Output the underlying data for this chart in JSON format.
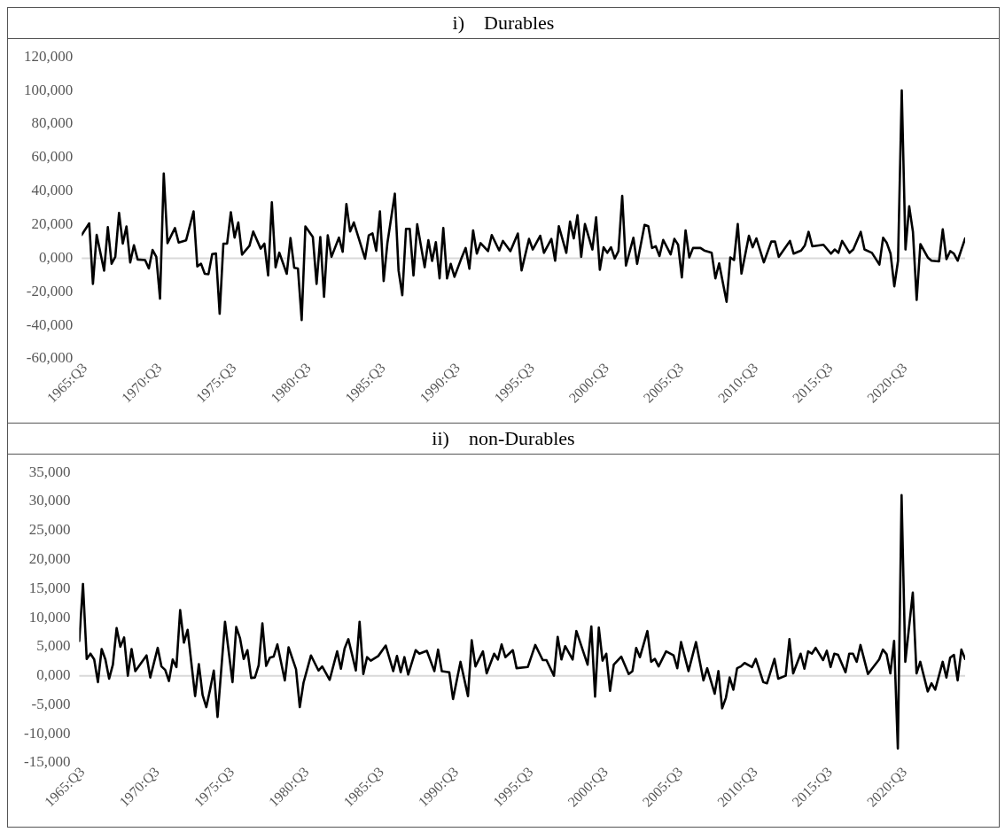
{
  "chart_data": [
    {
      "type": "line",
      "title": "i)    Durables",
      "color": "#000000",
      "marker": "none",
      "line_style": "solid",
      "grid": false,
      "ref_lines": [
        {
          "axis": "y",
          "value": 0,
          "color": "#d9d9d9"
        }
      ],
      "xlim": [
        "1965-07",
        "2024-10"
      ],
      "xticks": [
        {
          "value": "1965-07",
          "label": "1965:Q3"
        },
        {
          "value": "1970-07",
          "label": "1970:Q3"
        },
        {
          "value": "1975-07",
          "label": "1975:Q3"
        },
        {
          "value": "1980-07",
          "label": "1980:Q3"
        },
        {
          "value": "1985-07",
          "label": "1985:Q3"
        },
        {
          "value": "1990-07",
          "label": "1990:Q3"
        },
        {
          "value": "1995-07",
          "label": "1995:Q3"
        },
        {
          "value": "2000-07",
          "label": "2000:Q3"
        },
        {
          "value": "2005-07",
          "label": "2005:Q3"
        },
        {
          "value": "2010-07",
          "label": "2010:Q3"
        },
        {
          "value": "2015-07",
          "label": "2015:Q3"
        },
        {
          "value": "2020-07",
          "label": "2020:Q3"
        }
      ],
      "ylim": [
        -60,
        120
      ],
      "yticks": [
        {
          "value": -60,
          "label": "-60,000"
        },
        {
          "value": -40,
          "label": "-40,000"
        },
        {
          "value": -20,
          "label": "-20,000"
        },
        {
          "value": 0,
          "label": "0,000"
        },
        {
          "value": 20,
          "label": "20,000"
        },
        {
          "value": 40,
          "label": "40,000"
        },
        {
          "value": 60,
          "label": "60,000"
        },
        {
          "value": 80,
          "label": "80,000"
        },
        {
          "value": 100,
          "label": "100,000"
        },
        {
          "value": 120,
          "label": "120,000"
        }
      ],
      "x": [
        "1965-07",
        "1966-01",
        "1966-04",
        "1966-07",
        "1967-01",
        "1967-04",
        "1967-07",
        "1967-10",
        "1968-01",
        "1968-04",
        "1968-07",
        "1968-10",
        "1969-01",
        "1969-04",
        "1969-10",
        "1970-01",
        "1970-04",
        "1970-07",
        "1970-10",
        "1971-01",
        "1971-04",
        "1971-10",
        "1972-01",
        "1972-07",
        "1973-01",
        "1973-04",
        "1973-07",
        "1973-10",
        "1974-01",
        "1974-04",
        "1974-07",
        "1974-10",
        "1975-01",
        "1975-04",
        "1975-07",
        "1975-10",
        "1976-01",
        "1976-04",
        "1976-10",
        "1977-01",
        "1977-07",
        "1977-10",
        "1978-01",
        "1978-04",
        "1978-07",
        "1978-10",
        "1979-04",
        "1979-07",
        "1979-10",
        "1980-01",
        "1980-04",
        "1980-07",
        "1981-01",
        "1981-04",
        "1981-07",
        "1981-10",
        "1982-01",
        "1982-04",
        "1982-10",
        "1983-01",
        "1983-04",
        "1983-07",
        "1983-10",
        "1984-07",
        "1984-10",
        "1985-01",
        "1985-04",
        "1985-07",
        "1985-10",
        "1986-01",
        "1986-07",
        "1986-10",
        "1987-01",
        "1987-04",
        "1987-07",
        "1987-10",
        "1988-01",
        "1988-07",
        "1988-10",
        "1989-01",
        "1989-04",
        "1989-07",
        "1989-10",
        "1990-01",
        "1990-04",
        "1990-07",
        "1991-01",
        "1991-04",
        "1991-07",
        "1991-10",
        "1992-01",
        "1992-04",
        "1992-10",
        "1993-01",
        "1993-07",
        "1993-10",
        "1994-04",
        "1994-10",
        "1995-01",
        "1995-07",
        "1995-10",
        "1996-04",
        "1996-07",
        "1997-01",
        "1997-04",
        "1997-07",
        "1998-01",
        "1998-04",
        "1998-07",
        "1998-10",
        "1999-01",
        "1999-04",
        "1999-10",
        "2000-01",
        "2000-04",
        "2000-07",
        "2000-10",
        "2001-01",
        "2001-04",
        "2001-07",
        "2001-10",
        "2002-01",
        "2002-07",
        "2002-10",
        "2003-04",
        "2003-07",
        "2003-10",
        "2004-01",
        "2004-04",
        "2004-07",
        "2005-01",
        "2005-04",
        "2005-07",
        "2005-10",
        "2006-01",
        "2006-04",
        "2006-07",
        "2007-01",
        "2007-04",
        "2007-10",
        "2008-01",
        "2008-04",
        "2008-10",
        "2009-01",
        "2009-04",
        "2009-07",
        "2009-10",
        "2010-04",
        "2010-07",
        "2010-10",
        "2011-04",
        "2011-10",
        "2012-01",
        "2012-04",
        "2013-01",
        "2013-04",
        "2013-10",
        "2014-01",
        "2014-04",
        "2014-07",
        "2015-04",
        "2015-10",
        "2016-01",
        "2016-04",
        "2016-07",
        "2017-01",
        "2017-04",
        "2017-10",
        "2018-01",
        "2018-07",
        "2019-01",
        "2019-04",
        "2019-07",
        "2019-10",
        "2020-01",
        "2020-04",
        "2020-07",
        "2020-10",
        "2021-01",
        "2021-04",
        "2021-07",
        "2021-10",
        "2022-04",
        "2022-07",
        "2023-01",
        "2023-04",
        "2023-07",
        "2023-10",
        "2024-01",
        "2024-04",
        "2024-07",
        "2024-10"
      ],
      "values": [
        13.9,
        20.8,
        -15.3,
        13.9,
        -7.4,
        18.5,
        -3.3,
        0.8,
        27.0,
        8.7,
        18.9,
        -2.5,
        7.7,
        -0.8,
        -1.1,
        -6.1,
        4.9,
        0.8,
        -24.1,
        50.5,
        9.0,
        18.0,
        9.3,
        10.7,
        27.9,
        -4.9,
        -3.3,
        -9.3,
        -9.5,
        2.5,
        2.8,
        -33.1,
        8.7,
        8.7,
        27.4,
        12.3,
        21.3,
        2.1,
        7.4,
        15.9,
        5.7,
        8.7,
        -10.3,
        33.3,
        -5.4,
        3.3,
        -9.3,
        12.0,
        -5.7,
        -6.1,
        -36.9,
        18.9,
        12.6,
        -15.3,
        12.6,
        -23.0,
        13.6,
        0.8,
        12.3,
        3.8,
        32.3,
        15.9,
        21.3,
        -0.3,
        13.6,
        14.8,
        4.4,
        27.9,
        -13.6,
        9.0,
        38.5,
        -7.4,
        -22.1,
        17.5,
        17.5,
        -10.3,
        20.2,
        -5.4,
        10.7,
        -1.6,
        9.6,
        -12.0,
        18.0,
        -12.0,
        -3.4,
        -11.1,
        0.8,
        6.1,
        -6.3,
        16.6,
        2.7,
        9.0,
        4.2,
        13.8,
        4.6,
        10.3,
        4.2,
        14.7,
        -7.3,
        11.5,
        5.2,
        13.4,
        3.2,
        11.5,
        -1.5,
        19.1,
        3.2,
        21.8,
        11.8,
        25.6,
        0.8,
        20.4,
        5.2,
        24.3,
        -6.9,
        6.5,
        3.2,
        6.5,
        -0.2,
        4.2,
        37.2,
        -4.4,
        12.2,
        -3.4,
        19.9,
        19.1,
        6.1,
        7.1,
        1.3,
        10.9,
        2.3,
        11.5,
        8.0,
        -11.5,
        16.6,
        0.4,
        6.1,
        6.1,
        4.6,
        3.2,
        -12.0,
        -3.1,
        -26.0,
        0.4,
        -1.1,
        20.4,
        -9.2,
        13.4,
        6.5,
        11.8,
        -2.5,
        9.9,
        9.9,
        0.8,
        10.3,
        2.7,
        4.6,
        7.6,
        15.7,
        7.1,
        8.0,
        2.7,
        5.2,
        3.2,
        10.3,
        3.2,
        5.2,
        15.7,
        5.2,
        3.2,
        -3.8,
        12.2,
        9.0,
        2.7,
        -16.8,
        -1.5,
        100.0,
        5.2,
        30.9,
        15.7,
        -24.8,
        8.4,
        0.4,
        -1.5,
        -1.9,
        17.2,
        -0.6,
        4.2,
        2.7,
        -1.5,
        5.2,
        11.8
      ]
    },
    {
      "type": "line",
      "title": "ii)    non-Durables",
      "color": "#000000",
      "marker": "none",
      "line_style": "solid",
      "grid": false,
      "ref_lines": [
        {
          "axis": "y",
          "value": 0,
          "color": "#d9d9d9"
        }
      ],
      "xlim": [
        "1965-07",
        "2024-10"
      ],
      "xticks": [
        {
          "value": "1965-07",
          "label": "1965:Q3"
        },
        {
          "value": "1970-07",
          "label": "1970:Q3"
        },
        {
          "value": "1975-07",
          "label": "1975:Q3"
        },
        {
          "value": "1980-07",
          "label": "1980:Q3"
        },
        {
          "value": "1985-07",
          "label": "1985:Q3"
        },
        {
          "value": "1990-07",
          "label": "1990:Q3"
        },
        {
          "value": "1995-07",
          "label": "1995:Q3"
        },
        {
          "value": "2000-07",
          "label": "2000:Q3"
        },
        {
          "value": "2005-07",
          "label": "2005:Q3"
        },
        {
          "value": "2010-07",
          "label": "2010:Q3"
        },
        {
          "value": "2015-07",
          "label": "2015:Q3"
        },
        {
          "value": "2020-07",
          "label": "2020:Q3"
        }
      ],
      "ylim": [
        -15,
        35
      ],
      "yticks": [
        {
          "value": -15,
          "label": "-15,000"
        },
        {
          "value": -10,
          "label": "-10,000"
        },
        {
          "value": -5,
          "label": "-5,000"
        },
        {
          "value": 0,
          "label": "0,000"
        },
        {
          "value": 5,
          "label": "5,000"
        },
        {
          "value": 10,
          "label": "10,000"
        },
        {
          "value": 15,
          "label": "15,000"
        },
        {
          "value": 20,
          "label": "20,000"
        },
        {
          "value": 25,
          "label": "25,000"
        },
        {
          "value": 30,
          "label": "30,000"
        },
        {
          "value": 35,
          "label": "35,000"
        }
      ],
      "x": [
        "1965-07",
        "1965-10",
        "1966-01",
        "1966-04",
        "1966-07",
        "1966-10",
        "1967-01",
        "1967-04",
        "1967-07",
        "1967-10",
        "1968-01",
        "1968-04",
        "1968-07",
        "1968-10",
        "1969-01",
        "1969-04",
        "1970-01",
        "1970-04",
        "1970-10",
        "1971-01",
        "1971-04",
        "1971-07",
        "1971-10",
        "1972-01",
        "1972-04",
        "1972-07",
        "1972-10",
        "1973-04",
        "1973-07",
        "1973-10",
        "1974-01",
        "1974-04",
        "1974-07",
        "1974-10",
        "1975-04",
        "1975-10",
        "1976-01",
        "1976-04",
        "1976-07",
        "1976-10",
        "1977-01",
        "1977-04",
        "1977-07",
        "1977-10",
        "1978-01",
        "1978-04",
        "1978-07",
        "1978-10",
        "1979-04",
        "1979-07",
        "1980-01",
        "1980-04",
        "1980-07",
        "1981-01",
        "1981-07",
        "1981-10",
        "1982-04",
        "1982-10",
        "1983-01",
        "1983-04",
        "1983-07",
        "1984-01",
        "1984-04",
        "1984-07",
        "1984-10",
        "1985-01",
        "1985-07",
        "1986-01",
        "1986-07",
        "1986-10",
        "1987-01",
        "1987-04",
        "1987-07",
        "1988-01",
        "1988-04",
        "1988-10",
        "1989-04",
        "1989-07",
        "1989-10",
        "1990-04",
        "1990-07",
        "1991-01",
        "1991-07",
        "1991-10",
        "1992-01",
        "1992-07",
        "1992-10",
        "1993-04",
        "1993-07",
        "1993-10",
        "1994-01",
        "1994-07",
        "1994-10",
        "1995-07",
        "1996-01",
        "1996-07",
        "1996-10",
        "1997-04",
        "1997-07",
        "1997-10",
        "1998-01",
        "1998-07",
        "1998-10",
        "1999-07",
        "1999-10",
        "2000-01",
        "2000-04",
        "2000-07",
        "2000-10",
        "2001-01",
        "2001-04",
        "2001-10",
        "2002-04",
        "2002-07",
        "2002-10",
        "2003-01",
        "2003-07",
        "2003-10",
        "2004-01",
        "2004-04",
        "2004-10",
        "2005-04",
        "2005-07",
        "2005-10",
        "2006-04",
        "2006-10",
        "2007-04",
        "2007-07",
        "2008-01",
        "2008-04",
        "2008-07",
        "2008-10",
        "2009-01",
        "2009-04",
        "2009-07",
        "2009-10",
        "2010-01",
        "2010-07",
        "2010-10",
        "2011-04",
        "2011-07",
        "2012-01",
        "2012-04",
        "2012-10",
        "2013-01",
        "2013-04",
        "2013-10",
        "2014-01",
        "2014-04",
        "2014-07",
        "2014-10",
        "2015-04",
        "2015-07",
        "2015-10",
        "2016-01",
        "2016-04",
        "2016-10",
        "2017-01",
        "2017-04",
        "2017-07",
        "2017-10",
        "2018-04",
        "2019-01",
        "2019-04",
        "2019-07",
        "2019-10",
        "2020-01",
        "2020-04",
        "2020-07",
        "2020-10",
        "2021-04",
        "2021-07",
        "2021-10",
        "2022-04",
        "2022-07",
        "2022-10",
        "2023-04",
        "2023-07",
        "2023-10",
        "2024-01",
        "2024-04",
        "2024-07",
        "2024-10"
      ],
      "values": [
        6.0,
        15.8,
        2.9,
        3.8,
        2.8,
        -1.1,
        4.6,
        2.8,
        -0.5,
        1.9,
        8.2,
        5.0,
        6.6,
        0.0,
        4.6,
        0.8,
        3.5,
        -0.3,
        4.8,
        1.6,
        1.0,
        -0.9,
        2.8,
        1.5,
        11.3,
        5.7,
        7.9,
        -3.5,
        2.0,
        -3.3,
        -5.4,
        -2.4,
        0.9,
        -7.1,
        9.3,
        -1.1,
        8.4,
        6.5,
        2.9,
        4.4,
        -0.4,
        -0.3,
        1.8,
        9.0,
        1.7,
        3.1,
        3.3,
        5.4,
        -0.8,
        4.9,
        1.1,
        -5.4,
        -1.2,
        3.5,
        0.9,
        1.6,
        -0.7,
        4.2,
        1.2,
        4.7,
        6.3,
        0.9,
        9.3,
        0.3,
        3.2,
        2.6,
        3.4,
        5.2,
        0.8,
        3.4,
        0.6,
        3.2,
        0.2,
        4.4,
        3.8,
        4.3,
        0.8,
        4.5,
        0.8,
        0.6,
        -4.0,
        2.4,
        -3.5,
        6.1,
        1.6,
        4.2,
        0.4,
        3.8,
        2.8,
        5.4,
        3.2,
        4.4,
        1.3,
        1.5,
        5.3,
        2.7,
        2.7,
        0.0,
        6.7,
        2.8,
        5.1,
        2.8,
        7.7,
        1.9,
        8.5,
        -3.6,
        8.3,
        2.6,
        3.8,
        -2.6,
        1.9,
        3.3,
        0.3,
        0.8,
        4.8,
        3.2,
        7.7,
        2.4,
        2.9,
        1.6,
        4.2,
        3.5,
        1.3,
        5.8,
        0.8,
        5.8,
        -0.8,
        1.3,
        -3.1,
        0.8,
        -5.6,
        -3.8,
        -0.3,
        -2.4,
        1.3,
        1.6,
        2.2,
        1.5,
        2.9,
        -1.1,
        -1.3,
        2.9,
        -0.5,
        0.0,
        6.3,
        0.4,
        3.8,
        1.2,
        4.2,
        3.8,
        4.8,
        2.7,
        4.3,
        1.5,
        3.8,
        3.6,
        0.6,
        3.8,
        3.8,
        2.4,
        5.3,
        0.3,
        2.8,
        4.5,
        3.7,
        0.4,
        6.0,
        -12.5,
        31.1,
        2.4,
        14.3,
        0.4,
        2.4,
        -2.7,
        -1.3,
        -2.4,
        2.4,
        -0.3,
        3.1,
        3.6,
        -0.8,
        4.5,
        2.9
      ]
    }
  ]
}
